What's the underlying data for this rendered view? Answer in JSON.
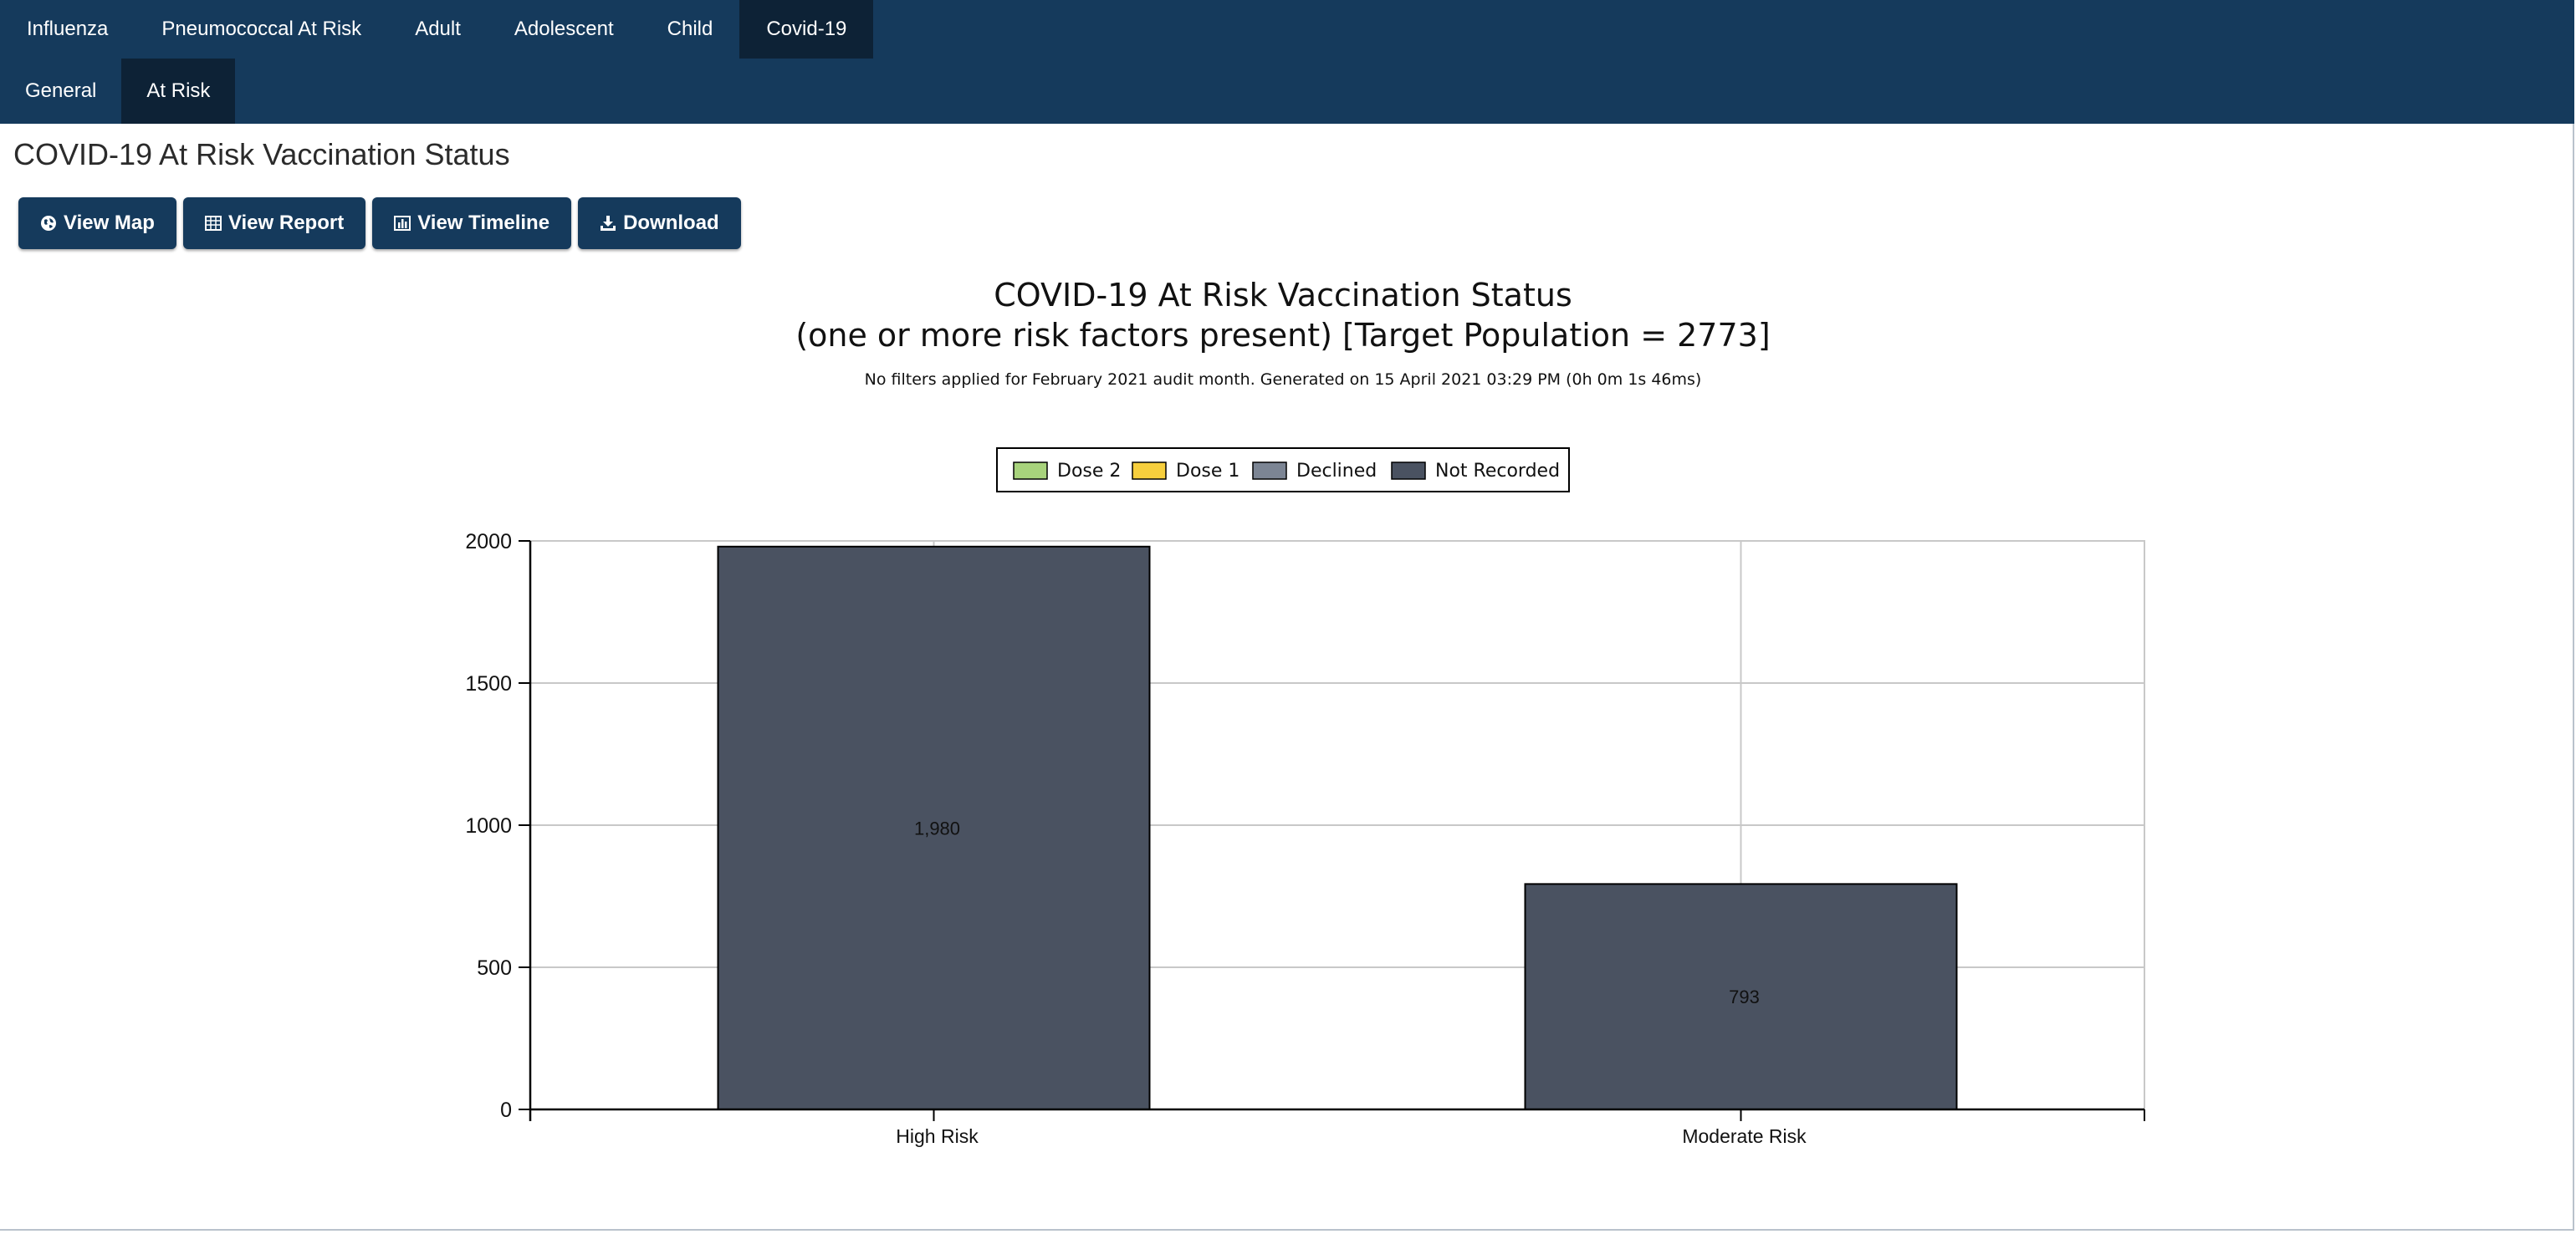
{
  "nav": {
    "tabs": [
      "Influenza",
      "Pneumococcal At Risk",
      "Adult",
      "Adolescent",
      "Child",
      "Covid-19"
    ],
    "active_tab": 5,
    "subtabs": [
      "General",
      "At Risk"
    ],
    "active_subtab": 1
  },
  "page": {
    "title": "COVID-19 At Risk Vaccination Status"
  },
  "toolbar": {
    "view_map": "View Map",
    "view_report": "View Report",
    "view_timeline": "View Timeline",
    "download": "Download"
  },
  "colors": {
    "nav_bg": "#153a5c",
    "nav_active": "#0d2236",
    "dose2": "#a8d37c",
    "dose1": "#f7cf3d",
    "declined": "#7c8594",
    "not_recorded": "#4a5261"
  },
  "chart_data": {
    "type": "bar",
    "title_line1": "COVID-19 At Risk Vaccination Status",
    "title_line2": "(one or more risk factors present) [Target Population = 2773]",
    "subtitle": "No filters applied for February 2021 audit month. Generated on 15 April 2021 03:29 PM (0h 0m 1s 46ms)",
    "legend": [
      "Dose 2",
      "Dose 1",
      "Declined",
      "Not Recorded"
    ],
    "legend_placement": "top-center",
    "categories": [
      "High Risk",
      "Moderate Risk"
    ],
    "series": [
      {
        "name": "Dose 2",
        "values": [
          0,
          0
        ]
      },
      {
        "name": "Dose 1",
        "values": [
          0,
          0
        ]
      },
      {
        "name": "Declined",
        "values": [
          0,
          0
        ]
      },
      {
        "name": "Not Recorded",
        "values": [
          1980,
          793
        ]
      }
    ],
    "data_labels": [
      "1,980",
      "793"
    ],
    "ylim": [
      0,
      2000
    ],
    "yticks": [
      0,
      500,
      1000,
      1500,
      2000
    ],
    "grid": true,
    "stacked": true
  }
}
